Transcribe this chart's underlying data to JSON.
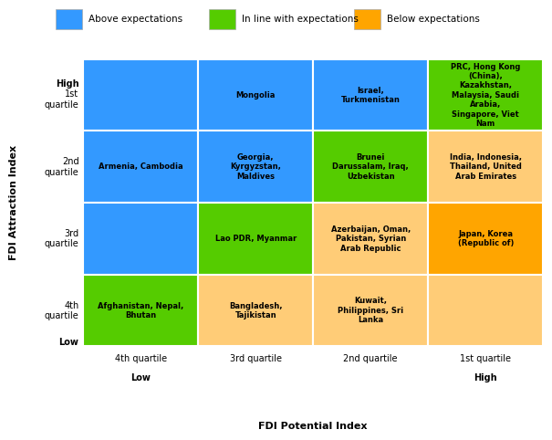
{
  "xlabel": "FDI Potential Index",
  "ylabel": "FDI Attraction Index",
  "colors": {
    "blue": "#3399FF",
    "green": "#55CC00",
    "orange": "#FFA500",
    "light_orange": "#FFCC77"
  },
  "legend": [
    {
      "label": "Above expectations",
      "color": "#3399FF"
    },
    {
      "label": "In line with expectations",
      "color": "#55CC00"
    },
    {
      "label": "Below expectations",
      "color": "#FFA500"
    }
  ],
  "row_labels": [
    "High\n1st\nquartile",
    "2nd\nquartile",
    "3rd\nquartile",
    "4th\nquartile"
  ],
  "col_labels": [
    "4th quartile",
    "3rd quartile",
    "2nd quartile",
    "1st quartile"
  ],
  "col_sub_labels": [
    "Low",
    "",
    "",
    "High"
  ],
  "cells": [
    {
      "row": 0,
      "col": 0,
      "color": "blue",
      "text": ""
    },
    {
      "row": 0,
      "col": 1,
      "color": "blue",
      "text": "Mongolia"
    },
    {
      "row": 0,
      "col": 2,
      "color": "blue",
      "text": "Israel,\nTurkmenistan"
    },
    {
      "row": 0,
      "col": 3,
      "color": "green",
      "text": "PRC, Hong Kong\n(China),\nKazakhstan,\nMalaysia, Saudi\nArabia,\nSingapore, Viet\nNam"
    },
    {
      "row": 1,
      "col": 0,
      "color": "blue",
      "text": "Armenia, Cambodia"
    },
    {
      "row": 1,
      "col": 1,
      "color": "blue",
      "text": "Georgia,\nKyrgyzstan,\nMaldives"
    },
    {
      "row": 1,
      "col": 2,
      "color": "green",
      "text": "Brunei\nDarussalam, Iraq,\nUzbekistan"
    },
    {
      "row": 1,
      "col": 3,
      "color": "light_orange",
      "text": "India, Indonesia,\nThailand, United\nArab Emirates"
    },
    {
      "row": 2,
      "col": 0,
      "color": "blue",
      "text": ""
    },
    {
      "row": 2,
      "col": 1,
      "color": "green",
      "text": "Lao PDR, Myanmar"
    },
    {
      "row": 2,
      "col": 2,
      "color": "light_orange",
      "text": "Azerbaijan, Oman,\nPakistan, Syrian\nArab Republic"
    },
    {
      "row": 2,
      "col": 3,
      "color": "orange",
      "text": "Japan, Korea\n(Republic of)"
    },
    {
      "row": 3,
      "col": 0,
      "color": "green",
      "text": "Afghanistan, Nepal,\nBhutan"
    },
    {
      "row": 3,
      "col": 1,
      "color": "light_orange",
      "text": "Bangladesh,\nTajikistan"
    },
    {
      "row": 3,
      "col": 2,
      "color": "light_orange",
      "text": "Kuwait,\nPhilippines, Sri\nLanka"
    },
    {
      "row": 3,
      "col": 3,
      "color": "light_orange",
      "text": ""
    }
  ]
}
